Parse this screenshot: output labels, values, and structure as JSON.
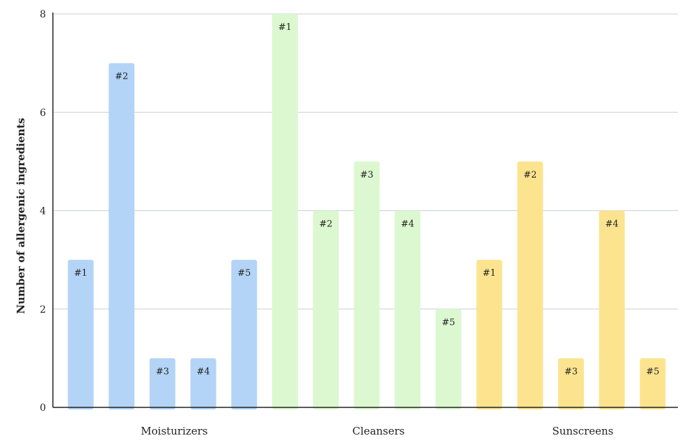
{
  "chart_data": {
    "type": "bar",
    "title": "",
    "xlabel": "",
    "ylabel": "Number of allergenic ingredients",
    "ylim": [
      0,
      8
    ],
    "yticks": [
      0,
      2,
      4,
      6,
      8
    ],
    "grid": true,
    "groups": [
      {
        "name": "Moisturizers",
        "color": "#b3d4f6",
        "bars": [
          {
            "label": "#1",
            "value": 3
          },
          {
            "label": "#2",
            "value": 7
          },
          {
            "label": "#3",
            "value": 1
          },
          {
            "label": "#4",
            "value": 1
          },
          {
            "label": "#5",
            "value": 3
          }
        ]
      },
      {
        "name": "Cleansers",
        "color": "#dcf8d0",
        "bars": [
          {
            "label": "#1",
            "value": 8
          },
          {
            "label": "#2",
            "value": 4
          },
          {
            "label": "#3",
            "value": 5
          },
          {
            "label": "#4",
            "value": 4
          },
          {
            "label": "#5",
            "value": 2
          }
        ]
      },
      {
        "name": "Sunscreens",
        "color": "#fce48f",
        "bars": [
          {
            "label": "#1",
            "value": 3
          },
          {
            "label": "#2",
            "value": 5
          },
          {
            "label": "#3",
            "value": 1
          },
          {
            "label": "#4",
            "value": 4
          },
          {
            "label": "#5",
            "value": 1
          }
        ]
      }
    ]
  }
}
